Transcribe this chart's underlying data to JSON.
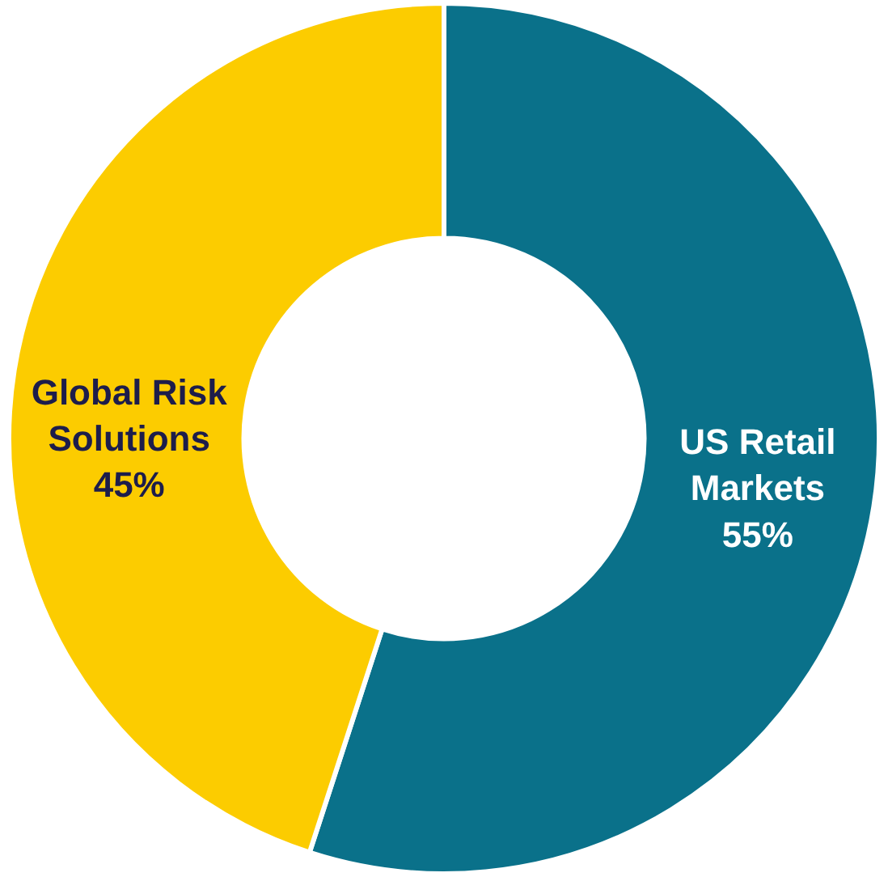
{
  "chart_data": {
    "type": "donut",
    "categories": [
      "US Retail\nMarkets",
      "Global Risk\nSolutions"
    ],
    "values": [
      55,
      45
    ],
    "value_labels": [
      "55%",
      "45%"
    ],
    "colors": [
      "#0a718a",
      "#fccc00"
    ],
    "legend": false
  }
}
